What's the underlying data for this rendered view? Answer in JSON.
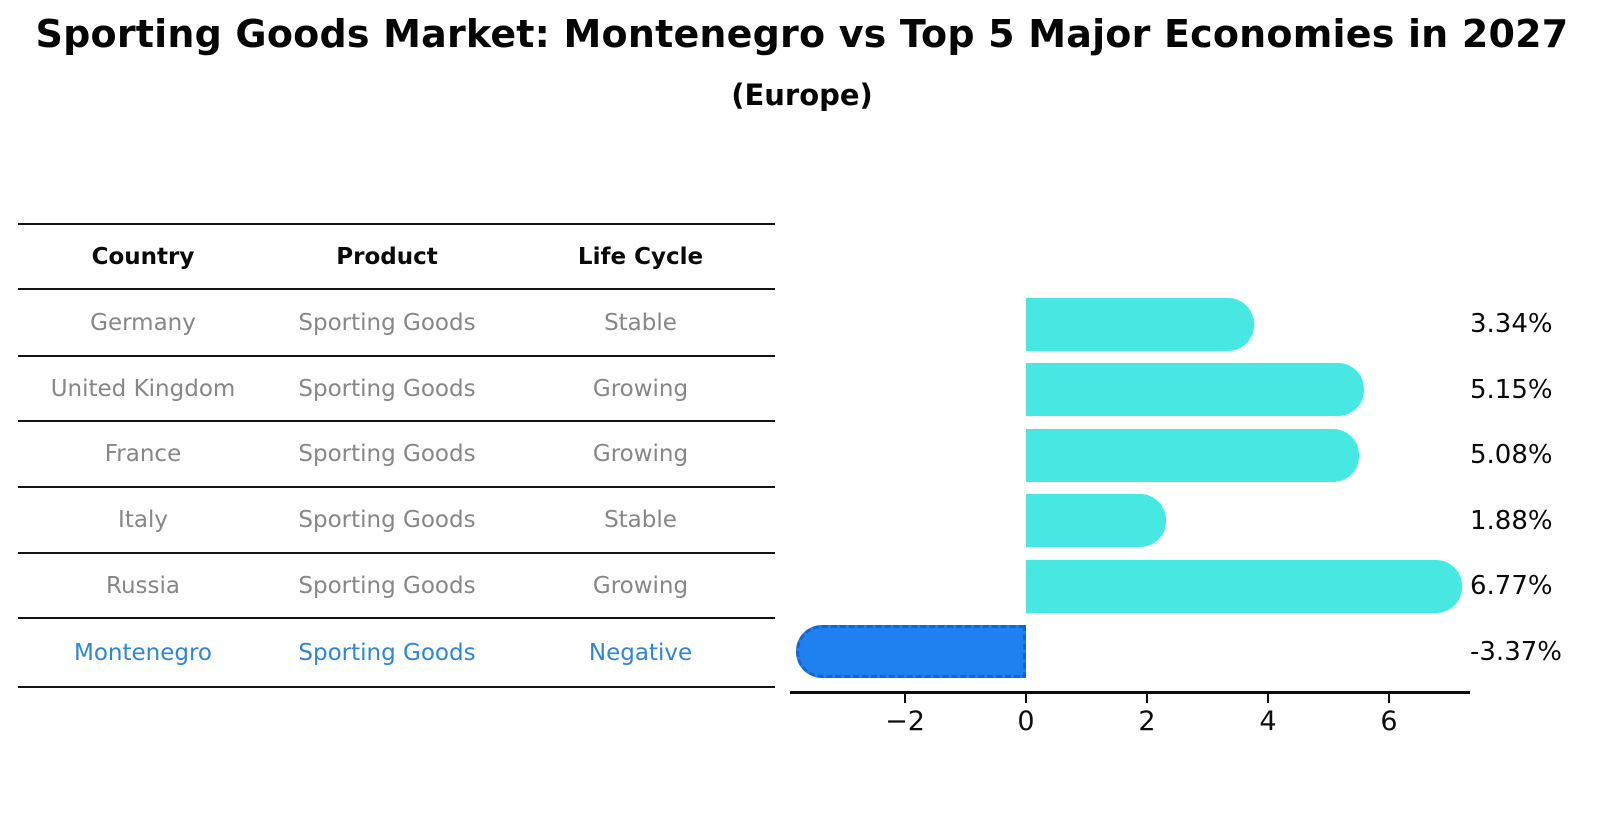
{
  "title": "Sporting Goods Market: Montenegro vs Top 5 Major Economies in 2027",
  "subtitle": "(Europe)",
  "table": {
    "headers": [
      "Country",
      "Product",
      "Life Cycle"
    ],
    "rows": [
      {
        "country": "Germany",
        "product": "Sporting Goods",
        "life_cycle": "Stable",
        "highlight": false
      },
      {
        "country": "United Kingdom",
        "product": "Sporting Goods",
        "life_cycle": "Growing",
        "highlight": false
      },
      {
        "country": "France",
        "product": "Sporting Goods",
        "life_cycle": "Growing",
        "highlight": false
      },
      {
        "country": "Italy",
        "product": "Sporting Goods",
        "life_cycle": "Stable",
        "highlight": false
      },
      {
        "country": "Russia",
        "product": "Sporting Goods",
        "life_cycle": "Growing",
        "highlight": false
      },
      {
        "country": "Montenegro",
        "product": "Sporting Goods",
        "life_cycle": "Negative",
        "highlight": true
      }
    ]
  },
  "chart_data": {
    "type": "bar",
    "orientation": "horizontal",
    "title": "Sporting Goods Market: Montenegro vs Top 5 Major Economies in 2027 (Europe)",
    "categories": [
      "Germany",
      "United Kingdom",
      "France",
      "Italy",
      "Russia",
      "Montenegro"
    ],
    "values": [
      3.34,
      5.15,
      5.08,
      1.88,
      6.77,
      -3.37
    ],
    "value_labels": [
      "3.34%",
      "5.15%",
      "5.08%",
      "1.88%",
      "6.77%",
      "-3.37%"
    ],
    "xticks": [
      -2,
      0,
      2,
      4,
      6
    ],
    "xtick_labels": [
      "−2",
      "0",
      "2",
      "4",
      "6"
    ],
    "xlim": [
      -3.9,
      7.35
    ],
    "grid": false,
    "legend": "none",
    "bar_color_positive": "#46e8e1",
    "bar_color_negative": "#1f80f0",
    "bar_border_negative": "#1465d2",
    "highlight_text_color": "#2e86d5",
    "row_text_color": "#878787"
  }
}
